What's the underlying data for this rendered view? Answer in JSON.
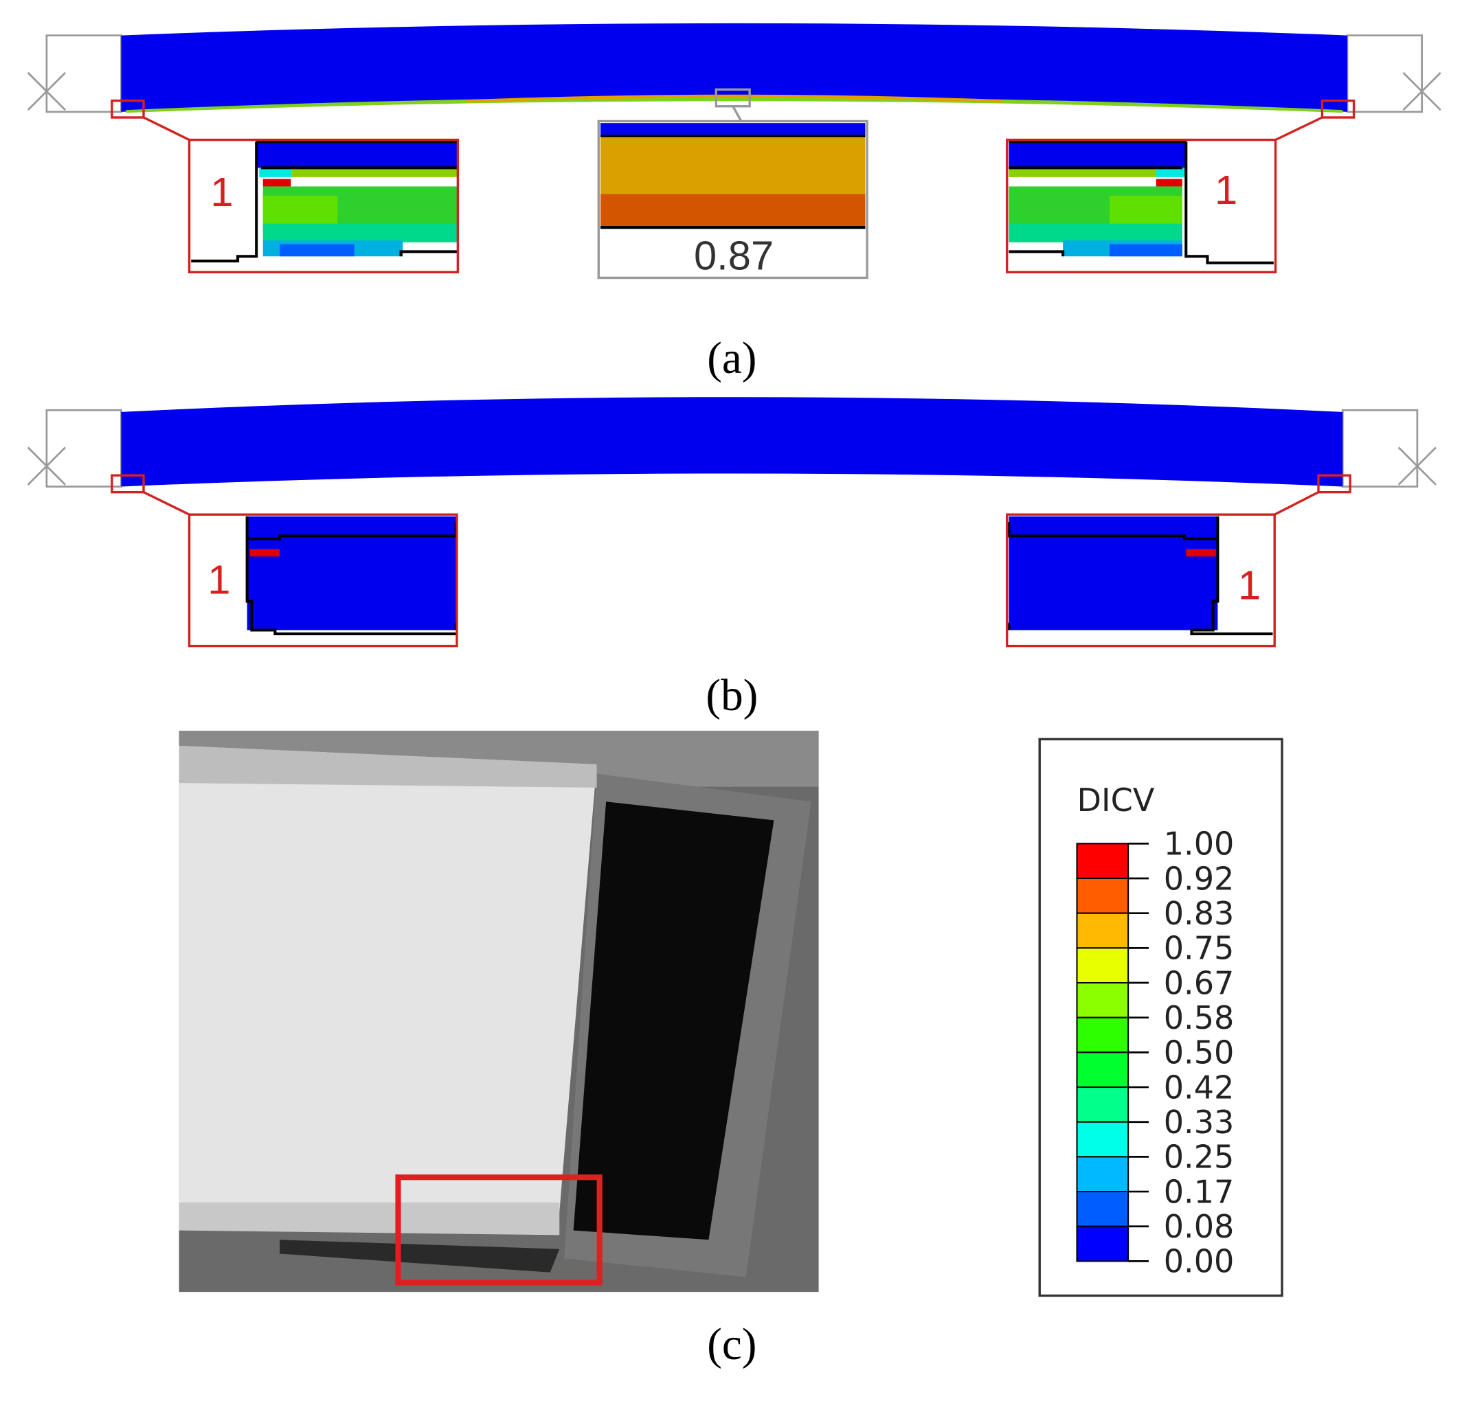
{
  "panels": [
    {
      "label": "(a)",
      "callouts": [
        "1",
        "1"
      ],
      "midspan_value": "0.87"
    },
    {
      "label": "(b)",
      "callouts": [
        "1",
        "1"
      ]
    },
    {
      "label": "(c)"
    }
  ],
  "legend": {
    "title": "DICV",
    "levels": [
      "1.00",
      "0.92",
      "0.83",
      "0.75",
      "0.67",
      "0.58",
      "0.50",
      "0.42",
      "0.33",
      "0.25",
      "0.17",
      "0.08",
      "0.00"
    ],
    "colors": [
      "#ff0000",
      "#ff5d00",
      "#ffb900",
      "#e8ff00",
      "#8bff00",
      "#2eff00",
      "#00ff2e",
      "#00ff8b",
      "#00ffe8",
      "#00b9ff",
      "#005dff",
      "#0000ff"
    ]
  }
}
